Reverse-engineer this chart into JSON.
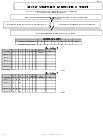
{
  "title": "Risk versus Return Chart",
  "page_num": "Page: 43\n2-4-4-A1",
  "subtitle": "Activity: A chart to record types and winning from the first series\nof coin flips (chip flips for each round)",
  "instruction": "Use your results from each round, check which numbers you would like to place\nyour chips on.",
  "flowbox1": "If the number rolled matches one of the numbers you\nchose, you will receive tokens!",
  "flowbox2": "If the number rolled does not match any of the\nnumbers you chose, you will receive nothing.",
  "flowbox3": "Use the strategy chart to determine the number of tokens you\nearned based on the number of players you made.",
  "strategy_chart_title": "Strategy Chart",
  "strategy_headers": [
    "Number of Numbers",
    "1",
    "2",
    "3",
    "4",
    "5",
    "6(all)"
  ],
  "strategy_values": [
    "Number of tokens Won",
    "6",
    "4",
    "3",
    "2",
    "1",
    "1"
  ],
  "activity1_title": "Activity 1",
  "activity1_col_headers": [
    "Numbers\n(or die)",
    "1",
    "2",
    "3",
    "4",
    "5",
    "6",
    "Numbers",
    "Number\nof\nCorrect",
    "Tokens\nWon"
  ],
  "activity1_rows": [
    [
      "Round 1",
      "",
      "",
      "",
      "",
      "",
      "",
      "",
      "",
      ""
    ],
    [
      "Round 2",
      "",
      "",
      "",
      "",
      "",
      "",
      "",
      "",
      ""
    ],
    [
      "Round 3",
      "",
      "",
      "",
      "",
      "",
      "",
      "",
      "",
      ""
    ],
    [
      "Round 4",
      "",
      "",
      "",
      "",
      "",
      "",
      "",
      "",
      ""
    ],
    [
      "Round 5",
      "",
      "",
      "",
      "",
      "",
      "",
      "",
      "",
      ""
    ],
    [
      "Round 6*",
      "4",
      "",
      "",
      "",
      "",
      "",
      "",
      "",
      ""
    ]
  ],
  "activity2_title": "Activity 2",
  "activity2_col_headers": [
    "Numbers\n(or die)",
    "1",
    "2",
    "3",
    "4",
    "5",
    "6",
    "Numbers",
    "Number\nof\nCorrect",
    "Tokens\nWon"
  ],
  "activity2_rows": [
    [
      "Round 1",
      "4",
      "10",
      "13",
      "4",
      "1",
      "",
      "",
      "",
      ""
    ],
    [
      "Round 2",
      "4",
      "4",
      "13",
      "3",
      "",
      "",
      "",
      "",
      ""
    ],
    [
      "Round 3",
      "4",
      "11",
      "13",
      "4",
      "1",
      "",
      "",
      "",
      ""
    ],
    [
      "Round 4",
      "4",
      "10",
      "12",
      "4",
      "",
      "",
      "",
      "",
      ""
    ],
    [
      "Round 5",
      "4",
      "5",
      "13",
      "4",
      "1",
      "",
      "",
      "",
      ""
    ]
  ],
  "bg_color": "#ffffff",
  "gray_header": "#c8c8c8",
  "light_gray": "#e8e8e8",
  "border_color": "#555555",
  "footer_text": "Copyright info"
}
